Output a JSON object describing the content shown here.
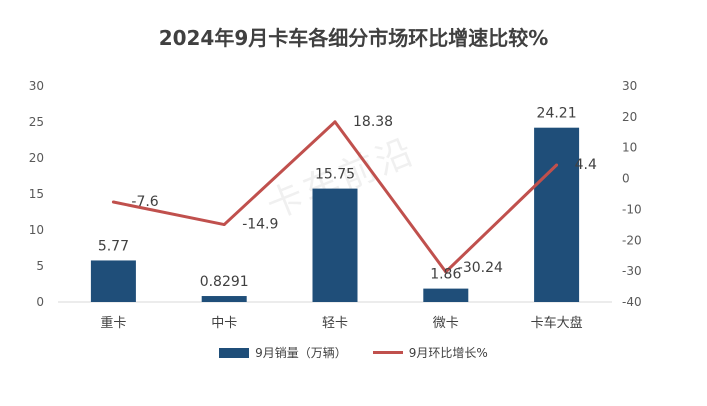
{
  "chart_data": {
    "type": "bar",
    "title": "2024年9月卡车各细分市场环比增速比较%",
    "categories": [
      "重卡",
      "中卡",
      "轻卡",
      "微卡",
      "卡车大盘"
    ],
    "series": [
      {
        "name": "9月销量（万辆）",
        "type": "bar",
        "axis": "left",
        "values": [
          5.77,
          0.8291,
          15.75,
          1.86,
          24.21
        ],
        "labels": [
          "5.77",
          "0.8291",
          "15.75",
          "1.86",
          "24.21"
        ]
      },
      {
        "name": "9月环比增长%",
        "type": "line",
        "axis": "right",
        "values": [
          -7.6,
          -14.9,
          18.38,
          -30.24,
          4.4
        ],
        "labels": [
          "-7.6",
          "-14.9",
          "18.38",
          "-30.24",
          "4.4"
        ]
      }
    ],
    "ylim_left": [
      0,
      30
    ],
    "yticks_left": [
      "0",
      "5",
      "10",
      "15",
      "20",
      "25",
      "30"
    ],
    "ylim_right": [
      -40,
      30
    ],
    "yticks_right": [
      "-40",
      "-30",
      "-20",
      "-10",
      "0",
      "10",
      "20",
      "30"
    ],
    "legend_position": "bottom",
    "colors": {
      "bar": "#1f4e79",
      "line": "#c0504d"
    },
    "grid": false
  },
  "watermark": "卡车前沿"
}
